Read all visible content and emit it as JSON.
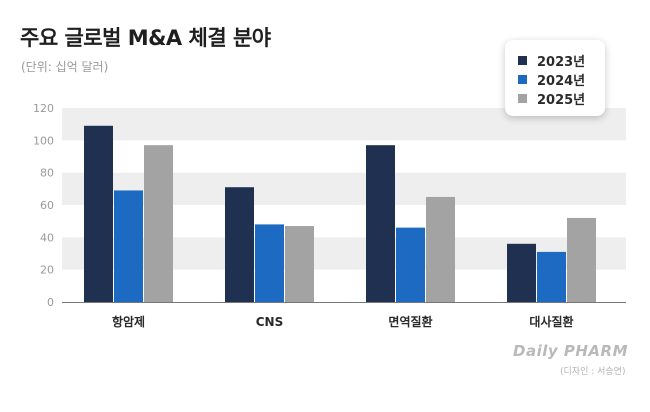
{
  "title": "주요 글로벌 M&A 체결 분야",
  "subtitle": "(단위: 십억 달러)",
  "credit": {
    "logo_text": "Daily PHARM",
    "designer": "(디자인 : 서승연)"
  },
  "colors": {
    "2023": "#1f3050",
    "2024": "#1c6ac2",
    "2025": "#a3a3a3"
  },
  "chart_data": {
    "type": "bar",
    "categories": [
      "항암제",
      "CNS",
      "면역질환",
      "대사질환"
    ],
    "series": [
      {
        "name": "2023년",
        "values": [
          109,
          71,
          97,
          36
        ]
      },
      {
        "name": "2024년",
        "values": [
          69,
          48,
          46,
          31
        ]
      },
      {
        "name": "2025년",
        "values": [
          97,
          47,
          65,
          52
        ]
      }
    ],
    "ylim": [
      0,
      120
    ],
    "yticks": [
      0,
      20,
      40,
      60,
      80,
      100,
      120
    ],
    "grid": "alternating bands",
    "legend_position": "top-right"
  }
}
